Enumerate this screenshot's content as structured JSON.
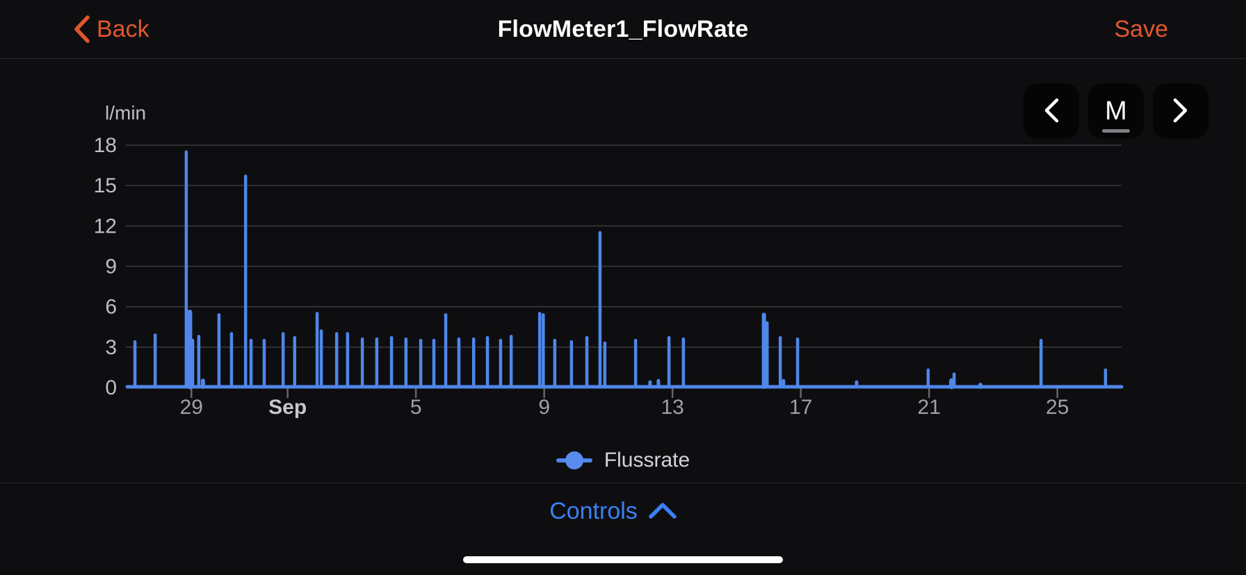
{
  "nav": {
    "back_label": "Back",
    "title": "FlowMeter1_FlowRate",
    "save_label": "Save"
  },
  "period_selector": {
    "prev_icon": "chevron-left",
    "mode_label": "M",
    "next_icon": "chevron-right"
  },
  "chart": {
    "unit_label": "l/min",
    "legend_series_label": "Flussrate"
  },
  "controls": {
    "label": "Controls",
    "chevron": "up"
  },
  "colors": {
    "accent_orange": "#e1572d",
    "accent_blue": "#3b80f5",
    "series_blue": "#4f87ea",
    "grid": "#3c3c40",
    "background": "#0e0e10"
  },
  "chart_data": {
    "type": "line",
    "title": "FlowMeter1_FlowRate",
    "ylabel": "l/min",
    "ylim": [
      0,
      18
    ],
    "y_ticks": [
      0,
      3,
      6,
      9,
      12,
      15,
      18
    ],
    "grid": true,
    "legend_position": "bottom-center",
    "x_start": "Aug 27",
    "x_end": "Sep 27",
    "x_range_days": 31,
    "x_ticks": [
      {
        "day": 2,
        "label": "29"
      },
      {
        "day": 5,
        "label": "Sep",
        "bold": true
      },
      {
        "day": 9,
        "label": "5"
      },
      {
        "day": 13,
        "label": "9"
      },
      {
        "day": 17,
        "label": "13"
      },
      {
        "day": 21,
        "label": "17"
      },
      {
        "day": 25,
        "label": "21"
      },
      {
        "day": 29,
        "label": "25"
      }
    ],
    "series": [
      {
        "name": "Flussrate",
        "color": "#4f87ea",
        "baseline_value": 0,
        "points_format": [
          "day_offset_from_Aug27",
          "value_l_per_min",
          "spike_width_px_optional"
        ],
        "points": [
          [
            0.24,
            3.4
          ],
          [
            0.87,
            3.9
          ],
          [
            1.84,
            17.5
          ],
          [
            1.95,
            5.6,
            7
          ],
          [
            2.04,
            3.5
          ],
          [
            2.23,
            3.8
          ],
          [
            2.36,
            0.5,
            6
          ],
          [
            2.86,
            5.4
          ],
          [
            3.25,
            4.0
          ],
          [
            3.69,
            15.7
          ],
          [
            3.86,
            3.5
          ],
          [
            4.27,
            3.5
          ],
          [
            4.86,
            4.0
          ],
          [
            5.22,
            3.7
          ],
          [
            5.92,
            5.5
          ],
          [
            6.05,
            4.2
          ],
          [
            6.53,
            4.0
          ],
          [
            6.87,
            4.0
          ],
          [
            7.33,
            3.6
          ],
          [
            7.78,
            3.6
          ],
          [
            8.24,
            3.7
          ],
          [
            8.69,
            3.6
          ],
          [
            9.15,
            3.5
          ],
          [
            9.56,
            3.5
          ],
          [
            9.93,
            5.4
          ],
          [
            10.34,
            3.6
          ],
          [
            10.8,
            3.6
          ],
          [
            11.23,
            3.7
          ],
          [
            11.64,
            3.5
          ],
          [
            11.97,
            3.8
          ],
          [
            12.86,
            5.5
          ],
          [
            12.97,
            5.4
          ],
          [
            13.33,
            3.5
          ],
          [
            13.85,
            3.4
          ],
          [
            14.33,
            3.7
          ],
          [
            14.74,
            11.5
          ],
          [
            14.89,
            3.3
          ],
          [
            15.85,
            3.5
          ],
          [
            16.3,
            0.4,
            5
          ],
          [
            16.56,
            0.5,
            5
          ],
          [
            16.89,
            3.7
          ],
          [
            17.34,
            3.6
          ],
          [
            19.85,
            5.4,
            6
          ],
          [
            19.95,
            4.8
          ],
          [
            20.36,
            3.7
          ],
          [
            20.46,
            0.5,
            5
          ],
          [
            20.9,
            3.6
          ],
          [
            22.74,
            0.4,
            5
          ],
          [
            24.97,
            1.3
          ],
          [
            25.7,
            0.5,
            7
          ],
          [
            25.78,
            1.0
          ],
          [
            26.6,
            0.2,
            6
          ],
          [
            28.49,
            3.5
          ],
          [
            30.5,
            1.3
          ]
        ]
      }
    ]
  }
}
